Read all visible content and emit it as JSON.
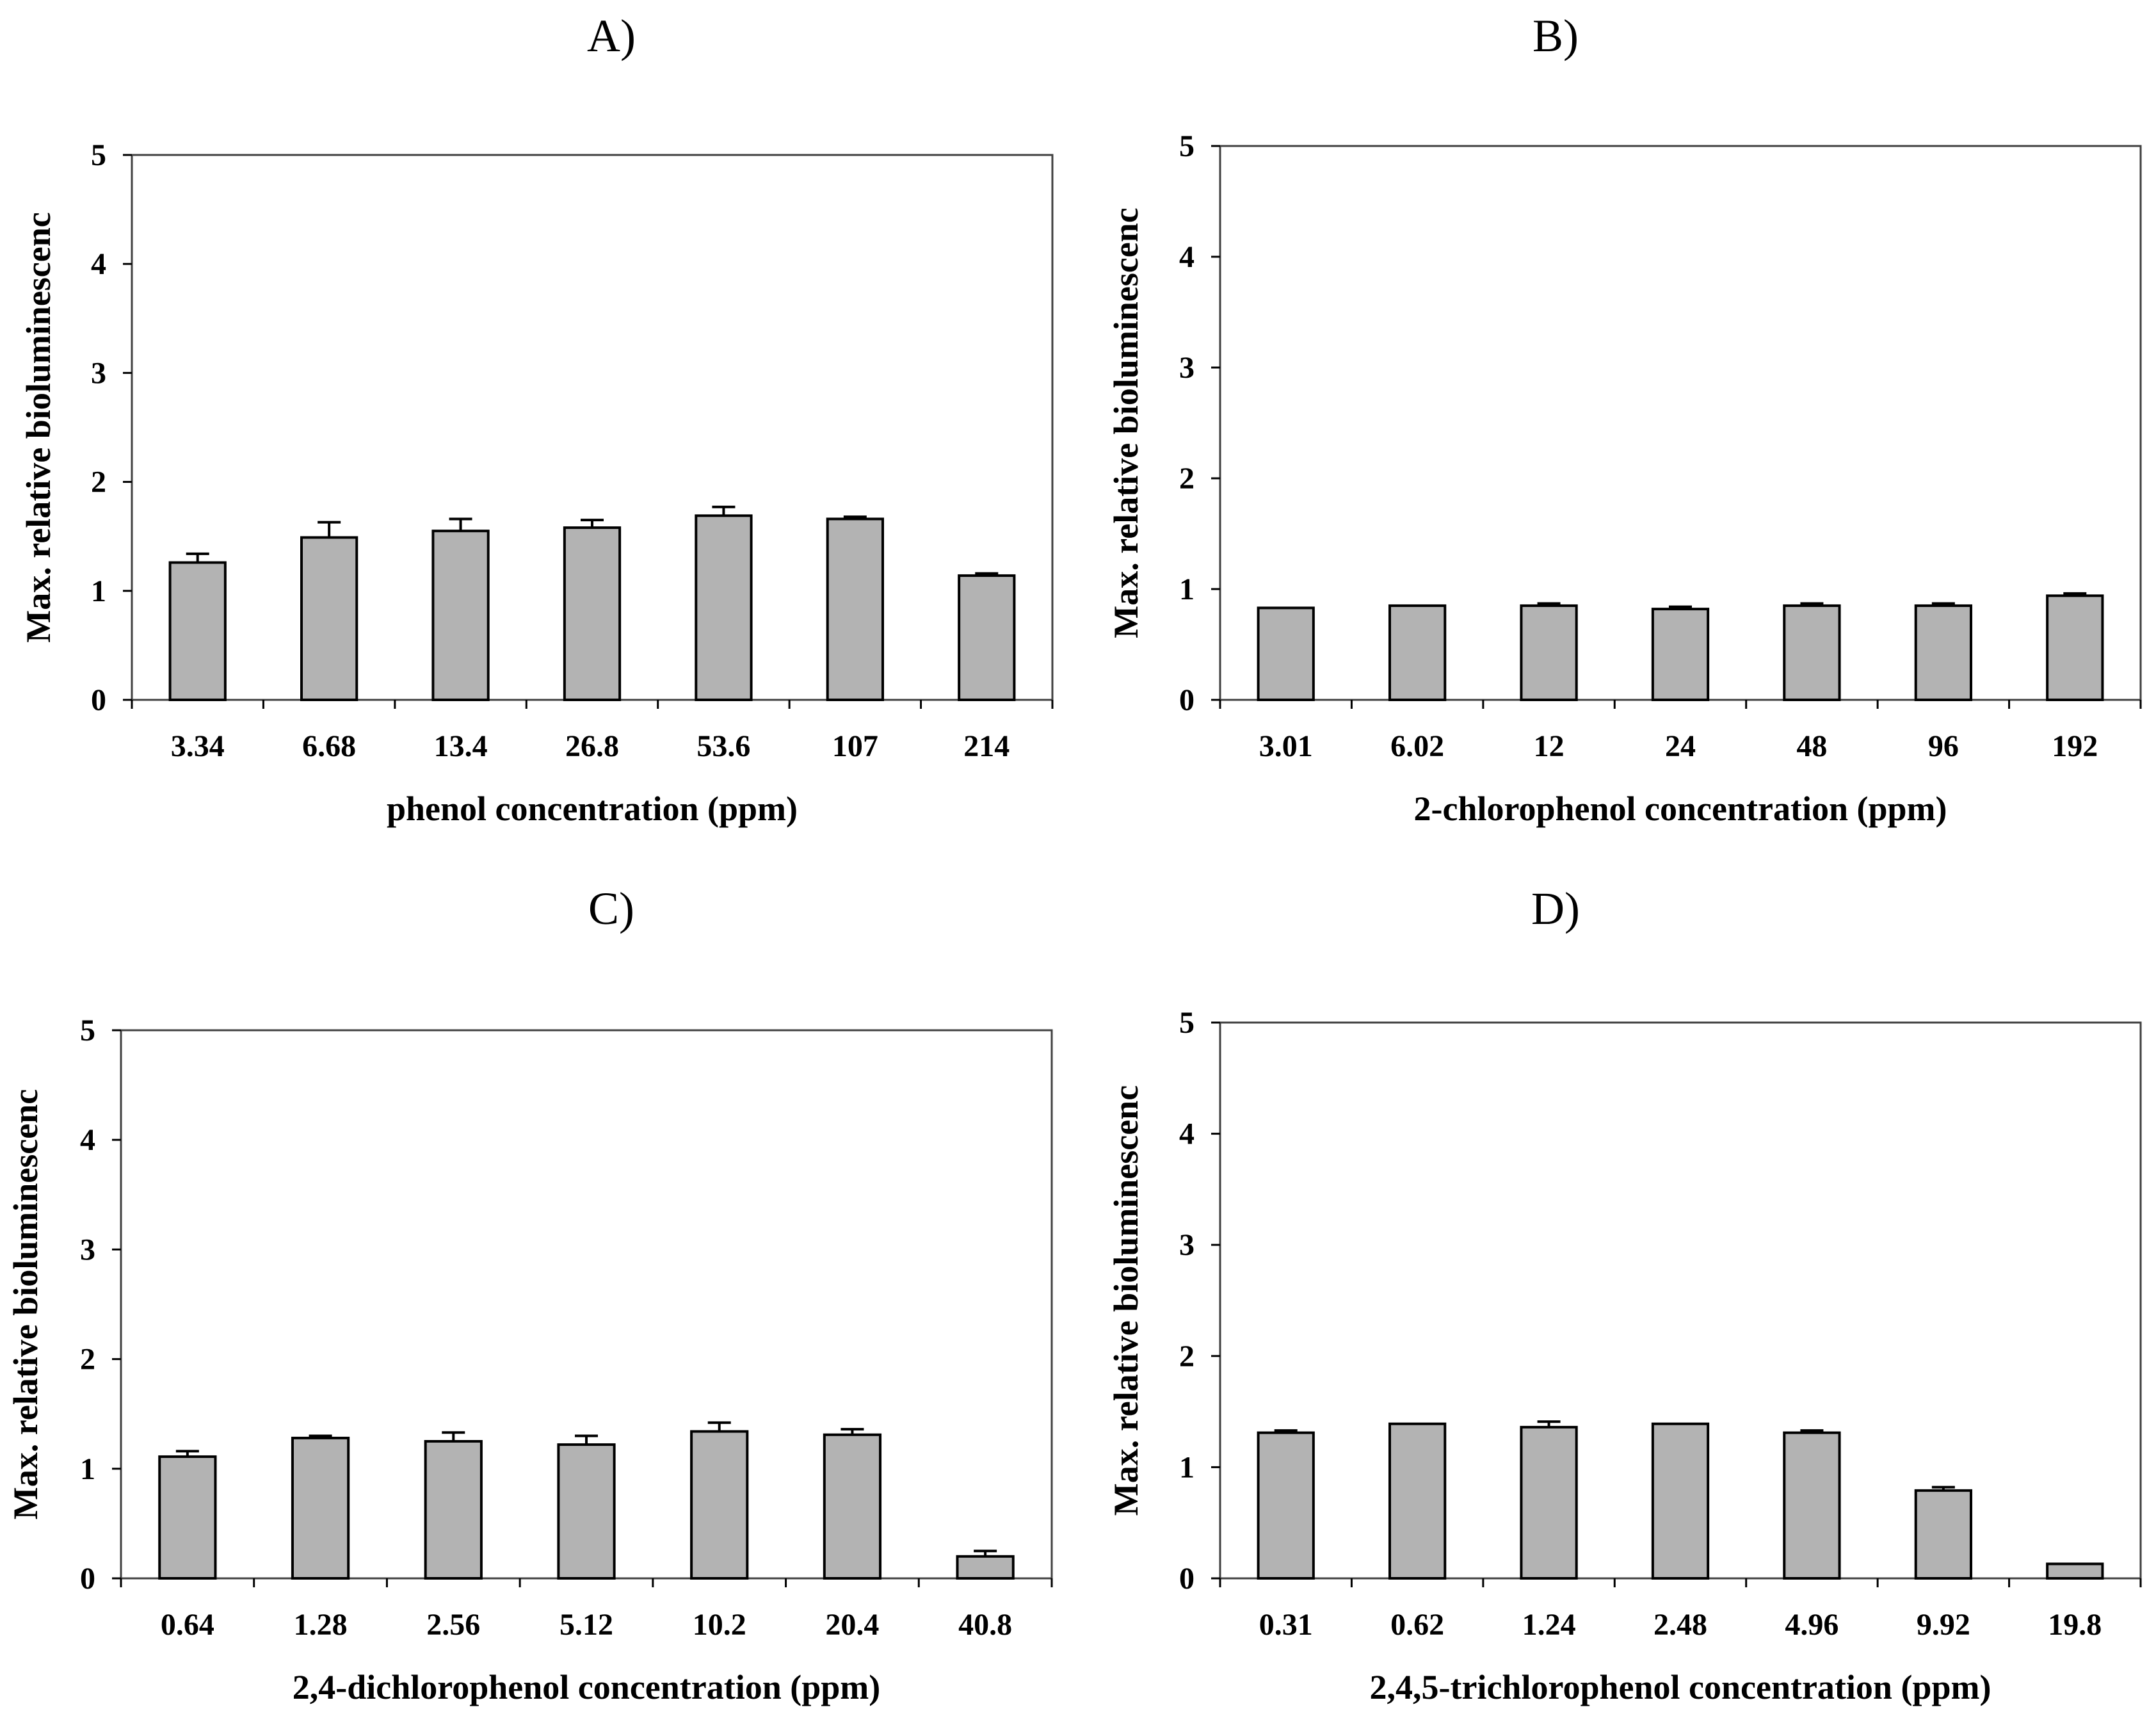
{
  "chart_data": [
    {
      "id": "A",
      "panel_label": "A)",
      "type": "bar",
      "categories": [
        "3.34",
        "6.68",
        "13.4",
        "26.8",
        "53.6",
        "107",
        "214"
      ],
      "values": [
        1.26,
        1.49,
        1.55,
        1.58,
        1.69,
        1.66,
        1.14
      ],
      "errors": [
        0.08,
        0.14,
        0.11,
        0.07,
        0.08,
        0.02,
        0.02
      ],
      "xlabel": "phenol concentration (ppm)",
      "ylabel": "Max. relative bioluminescenc",
      "ylim": [
        0,
        5
      ],
      "yticks": [
        0,
        1,
        2,
        3,
        4,
        5
      ],
      "bar_color": "#b3b3b3"
    },
    {
      "id": "B",
      "panel_label": "B)",
      "type": "bar",
      "categories": [
        "3.01",
        "6.02",
        "12",
        "24",
        "48",
        "96",
        "192"
      ],
      "values": [
        0.83,
        0.85,
        0.85,
        0.82,
        0.85,
        0.85,
        0.94
      ],
      "errors": [
        0.0,
        0.0,
        0.02,
        0.02,
        0.02,
        0.02,
        0.02
      ],
      "xlabel": "2-chlorophenol concentration (ppm)",
      "ylabel": "Max. relative bioluminescenc",
      "ylim": [
        0,
        5
      ],
      "yticks": [
        0,
        1,
        2,
        3,
        4,
        5
      ],
      "bar_color": "#b3b3b3"
    },
    {
      "id": "C",
      "panel_label": "C)",
      "type": "bar",
      "categories": [
        "0.64",
        "1.28",
        "2.56",
        "5.12",
        "10.2",
        "20.4",
        "40.8"
      ],
      "values": [
        1.11,
        1.28,
        1.25,
        1.22,
        1.34,
        1.31,
        0.2
      ],
      "errors": [
        0.05,
        0.02,
        0.08,
        0.08,
        0.08,
        0.05,
        0.05
      ],
      "xlabel": "2,4-dichlorophenol concentration (ppm)",
      "ylabel": "Max. relative bioluminescenc",
      "ylim": [
        0,
        5
      ],
      "yticks": [
        0,
        1,
        2,
        3,
        4,
        5
      ],
      "bar_color": "#b3b3b3"
    },
    {
      "id": "D",
      "panel_label": "D)",
      "type": "bar",
      "categories": [
        "0.31",
        "0.62",
        "1.24",
        "2.48",
        "4.96",
        "9.92",
        "19.8"
      ],
      "values": [
        1.31,
        1.39,
        1.36,
        1.39,
        1.31,
        0.79,
        0.13
      ],
      "errors": [
        0.02,
        0.0,
        0.05,
        0.0,
        0.02,
        0.03,
        0.0
      ],
      "xlabel": "2,4,5-trichlorophenol concentration (ppm)",
      "ylabel": "Max. relative bioluminescenc",
      "ylim": [
        0,
        5
      ],
      "yticks": [
        0,
        1,
        2,
        3,
        4,
        5
      ],
      "bar_color": "#b3b3b3"
    }
  ]
}
